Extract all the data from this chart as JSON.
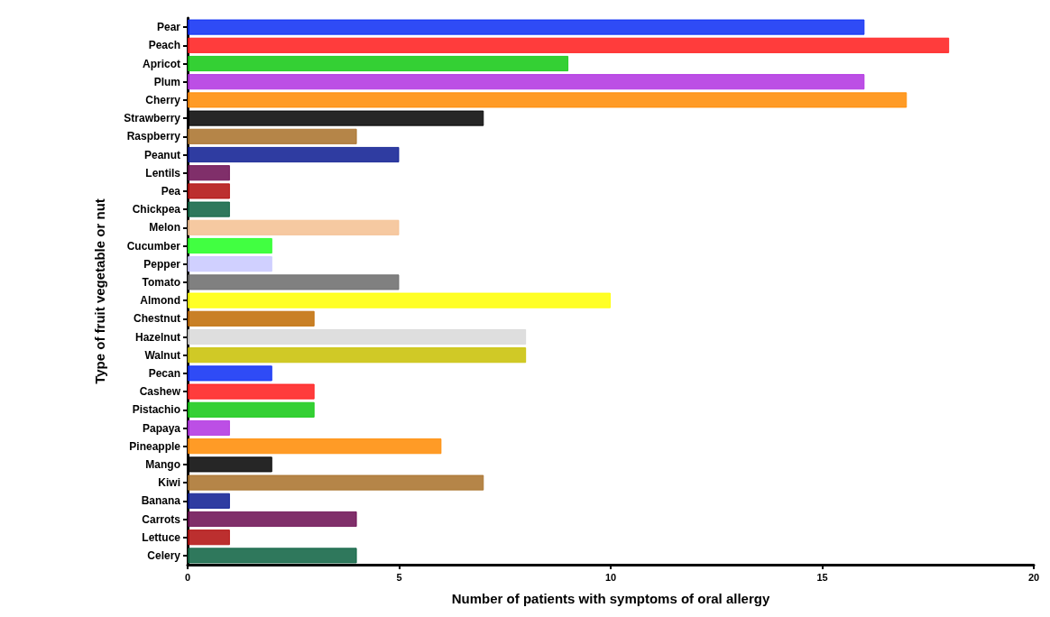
{
  "chart_data": {
    "type": "bar",
    "orientation": "horizontal",
    "xlabel": "Number of patients with symptoms of oral allergy",
    "ylabel": "Type of fruit vegetable or nut",
    "categories": [
      "Pear",
      "Peach",
      "Apricot",
      "Plum",
      "Cherry",
      "Strawberry",
      "Raspberry",
      "Peanut",
      "Lentils",
      "Pea",
      "Chickpea",
      "Melon",
      "Cucumber",
      "Pepper",
      "Tomato",
      "Almond",
      "Chestnut",
      "Hazelnut",
      "Walnut",
      "Pecan",
      "Cashew",
      "Pistachio",
      "Papaya",
      "Pineapple",
      "Mango",
      "Kiwi",
      "Banana",
      "Carrots",
      "Lettuce",
      "Celery"
    ],
    "values": [
      16,
      18,
      9,
      16,
      17,
      7,
      4,
      5,
      1,
      1,
      1,
      5,
      2,
      2,
      5,
      10,
      3,
      8,
      8,
      2,
      3,
      3,
      1,
      6,
      2,
      7,
      1,
      4,
      1,
      4
    ],
    "colors": [
      "#0a2cf5",
      "#ff1a1a",
      "#11c811",
      "#b030e0",
      "#ff8a00",
      "#000000",
      "#a87028",
      "#0a1a90",
      "#6a0a50",
      "#b00a0a",
      "#0a6040",
      "#f5c090",
      "#20ff20",
      "#c8c8ff",
      "#6a6a6a",
      "#ffff00",
      "#c06a00",
      "#d8d8d8",
      "#c8c000",
      "#0a2cf5",
      "#ff1a1a",
      "#11c811",
      "#b030e0",
      "#ff8a00",
      "#000000",
      "#a87028",
      "#0a1a90",
      "#6a0a50",
      "#b00a0a",
      "#0a6040"
    ],
    "xlim": [
      0,
      20
    ],
    "xticks": [
      0,
      5,
      10,
      15,
      20
    ],
    "grid": false
  }
}
